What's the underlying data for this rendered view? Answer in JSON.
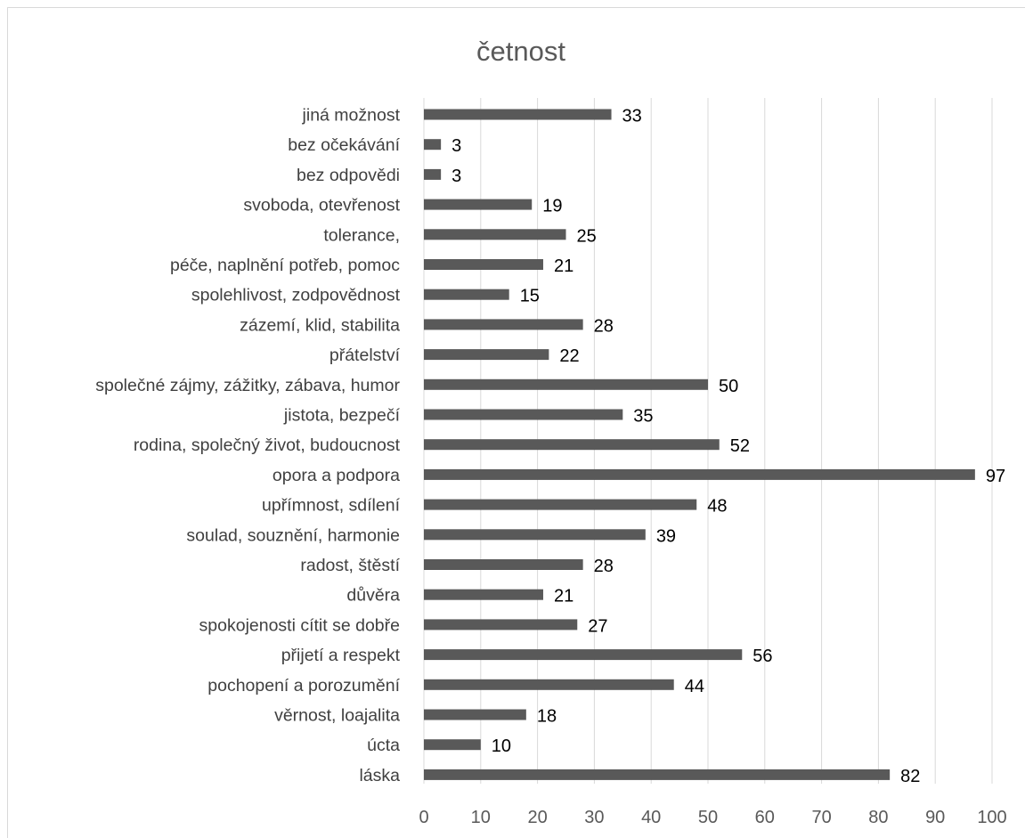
{
  "chart_data": {
    "type": "bar",
    "orientation": "horizontal",
    "title": "četnost",
    "categories": [
      "jiná možnost",
      "bez očekávání",
      "bez odpovědi",
      "svoboda, otevřenost",
      "tolerance,",
      "péče, naplnění potřeb, pomoc",
      "spolehlivost, zodpovědnost",
      "zázemí, klid, stabilita",
      "přátelství",
      "společné zájmy, zážitky, zábava, humor",
      "jistota, bezpečí",
      "rodina, společný život, budoucnost",
      "opora a podpora",
      "upřímnost, sdílení",
      "soulad, souznění, harmonie",
      "radost, štěstí",
      "důvěra",
      "spokojenosti cítit se dobře",
      "přijetí a respekt",
      "pochopení a porozumění",
      "věrnost, loajalita",
      "úcta",
      "láska"
    ],
    "values": [
      33,
      3,
      3,
      19,
      25,
      21,
      15,
      28,
      22,
      50,
      35,
      52,
      97,
      48,
      39,
      28,
      21,
      27,
      56,
      44,
      18,
      10,
      82
    ],
    "xlim": [
      0,
      100
    ],
    "x_ticks": [
      0,
      10,
      20,
      30,
      40,
      50,
      60,
      70,
      80,
      90,
      100
    ],
    "grid": "vertical",
    "legend": "none",
    "data_labels": true,
    "colors": {
      "bar": "#595959",
      "grid": "#d9d9d9",
      "title": "#595959",
      "labels": "#404040"
    }
  }
}
